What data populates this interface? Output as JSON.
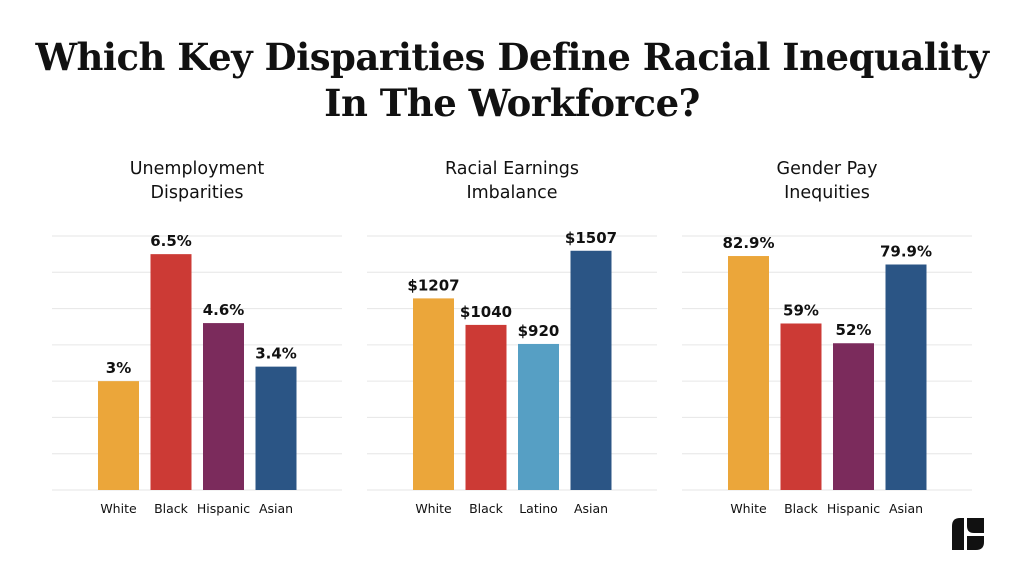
{
  "header": {
    "title_line1": "Which Key Disparities Define Racial Inequality",
    "title_line2": "In The Workforce?"
  },
  "chart_data": [
    {
      "type": "bar",
      "title_lines": [
        "Unemployment",
        "Disparities"
      ],
      "categories": [
        "White",
        "Black",
        "Hispanic",
        "Asian"
      ],
      "values": [
        3,
        6.5,
        4.6,
        3.4
      ],
      "value_labels": [
        "3%",
        "6.5%",
        "4.6%",
        "3.4%"
      ],
      "colors": [
        "#EBA63A",
        "#CC3A35",
        "#7B2B5C",
        "#2B5585"
      ],
      "ylim": [
        0,
        7
      ],
      "grid": true
    },
    {
      "type": "bar",
      "title_lines": [
        "Racial Earnings",
        "Imbalance"
      ],
      "categories": [
        "White",
        "Black",
        "Latino",
        "Asian"
      ],
      "values": [
        1207,
        1040,
        920,
        1507
      ],
      "value_labels": [
        "$1207",
        "$1040",
        "$920",
        "$1507"
      ],
      "colors": [
        "#EBA63A",
        "#CC3A35",
        "#569FC4",
        "#2B5585"
      ],
      "ylim": [
        0,
        1600
      ],
      "grid": true
    },
    {
      "type": "bar",
      "title_lines": [
        "Gender Pay",
        "Inequities"
      ],
      "categories": [
        "White",
        "Black",
        "Hispanic",
        "Asian"
      ],
      "values": [
        82.9,
        59,
        52,
        79.9
      ],
      "value_labels": [
        "82.9%",
        "59%",
        "52%",
        "79.9%"
      ],
      "colors": [
        "#EBA63A",
        "#CC3A35",
        "#7B2B5C",
        "#2B5585"
      ],
      "ylim": [
        0,
        90
      ],
      "grid": true
    }
  ],
  "logo": {
    "icon": "brand-logo-icon",
    "color": "#111111"
  }
}
